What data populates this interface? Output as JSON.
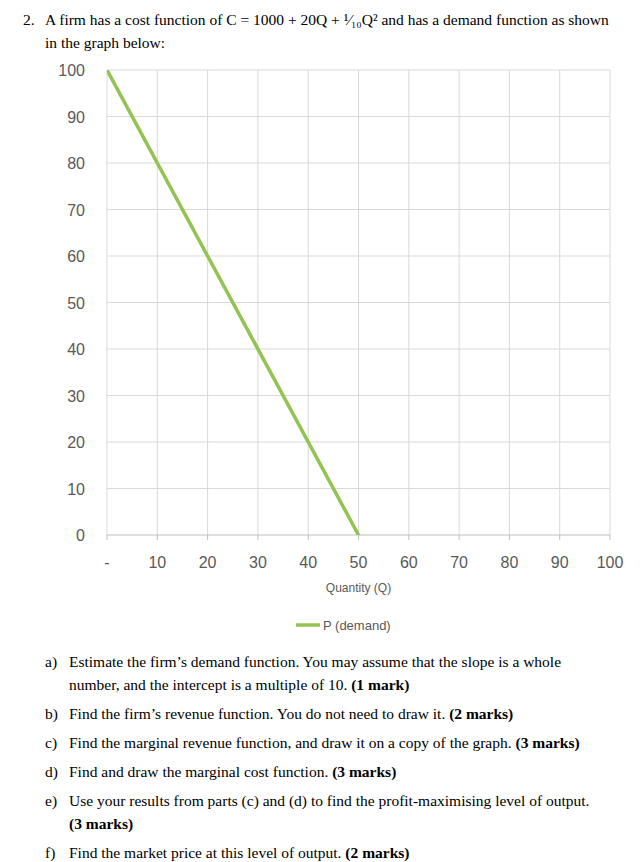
{
  "question": {
    "number": "2.",
    "text": "A firm has a cost function of C = 1000 + 20Q + ¹⁄₁₀Q² and has a demand function as shown in the graph below:"
  },
  "chart_data": {
    "type": "line",
    "x_label": "Quantity (Q)",
    "x": [
      0,
      50
    ],
    "series": [
      {
        "name": "P (demand)",
        "color": "#92c353",
        "values": [
          100,
          0
        ]
      }
    ],
    "xlim": [
      0,
      100
    ],
    "xticks": [
      {
        "value": 0,
        "label": "-"
      },
      10,
      20,
      30,
      40,
      50,
      60,
      70,
      80,
      90,
      100
    ],
    "ylim": [
      0,
      100
    ],
    "yticks": [
      0,
      10,
      20,
      30,
      40,
      50,
      60,
      70,
      80,
      90,
      100
    ],
    "grid": true,
    "legend": "bottom"
  },
  "parts": [
    {
      "label": "a)",
      "text": "Estimate the firm’s demand function. You may assume that the slope is a whole number, and the intercept is a multiple of 10.",
      "marks": "(1 mark)"
    },
    {
      "label": "b)",
      "text": "Find the firm’s revenue function. You do not need to draw it.",
      "marks": "(2 marks)"
    },
    {
      "label": "c)",
      "text": "Find the marginal revenue function, and draw it on a copy of the graph.",
      "marks": "(3 marks)"
    },
    {
      "label": "d)",
      "text": "Find and draw the marginal cost function.",
      "marks": "(3 marks)"
    },
    {
      "label": "e)",
      "text": "Use your results from parts (c) and (d) to find the profit-maximising level of output.",
      "marks": "(3 marks)"
    },
    {
      "label": "f)",
      "text": "Find the market price at this level of output.",
      "marks": "(2 marks)"
    }
  ]
}
